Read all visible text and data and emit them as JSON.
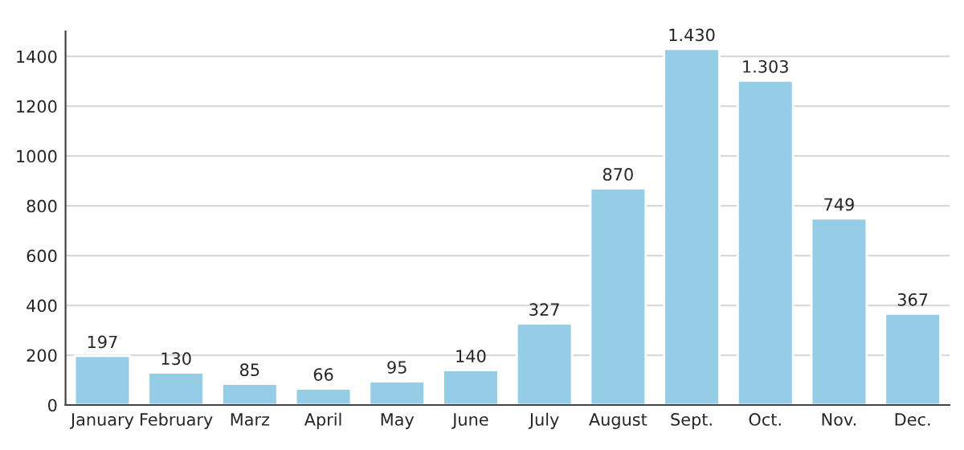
{
  "chart_data": {
    "type": "bar",
    "categories": [
      "January",
      "February",
      "Marz",
      "April",
      "May",
      "June",
      "July",
      "August",
      "Sept.",
      "Oct.",
      "Nov.",
      "Dec."
    ],
    "values": [
      197,
      130,
      85,
      66,
      95,
      140,
      327,
      870,
      1430,
      1303,
      749,
      367
    ],
    "value_labels": [
      "197",
      "130",
      "85",
      "66",
      "95",
      "140",
      "327",
      "870",
      "1.430",
      "1.303",
      "749",
      "367"
    ],
    "color": "#95cde6",
    "ylim": [
      0,
      1500
    ],
    "yticks": [
      0,
      200,
      400,
      600,
      800,
      1000,
      1200,
      1400
    ],
    "grid": "y"
  }
}
